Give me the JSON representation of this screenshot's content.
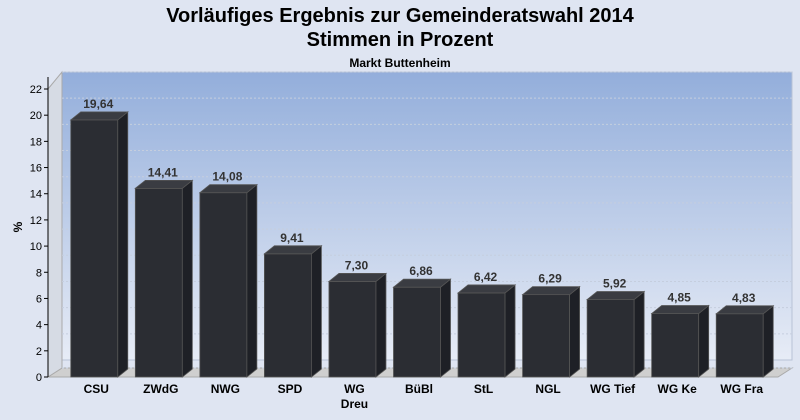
{
  "title_line1": "Vorläufiges Ergebnis zur Gemeinderatswahl 2014",
  "title_line2": "Stimmen in Prozent",
  "subtitle": "Markt Buttenheim",
  "chart_data": {
    "type": "bar",
    "title": "Vorläufiges Ergebnis zur Gemeinderatswahl 2014 Stimmen in Prozent",
    "subtitle": "Markt Buttenheim",
    "xlabel": "",
    "ylabel": "%",
    "ylim": [
      0,
      22
    ],
    "yticks": [
      0,
      2,
      4,
      6,
      8,
      10,
      12,
      14,
      16,
      18,
      20,
      22
    ],
    "grid": true,
    "categories": [
      [
        "CSU"
      ],
      [
        "ZWdG"
      ],
      [
        "NWG"
      ],
      [
        "SPD"
      ],
      [
        "WG",
        "Dreu"
      ],
      [
        "BüBl"
      ],
      [
        "StL"
      ],
      [
        "NGL"
      ],
      [
        "WG Tief"
      ],
      [
        "WG Ke"
      ],
      [
        "WG Fra"
      ]
    ],
    "values": [
      19.64,
      14.41,
      14.08,
      9.41,
      7.3,
      6.86,
      6.42,
      6.29,
      5.92,
      4.85,
      4.83
    ],
    "value_labels": [
      "19,64",
      "14,41",
      "14,08",
      "9,41",
      "7,30",
      "6,86",
      "6,42",
      "6,29",
      "5,92",
      "4,85",
      "4,83"
    ],
    "colors": {
      "bar_front": "#2b2d33",
      "bar_side": "#1e2026",
      "bar_top": "#3a3c42",
      "plot_top": "#93aedb",
      "plot_bottom": "#e7ecf6",
      "floor": "#cfcfcf"
    }
  }
}
